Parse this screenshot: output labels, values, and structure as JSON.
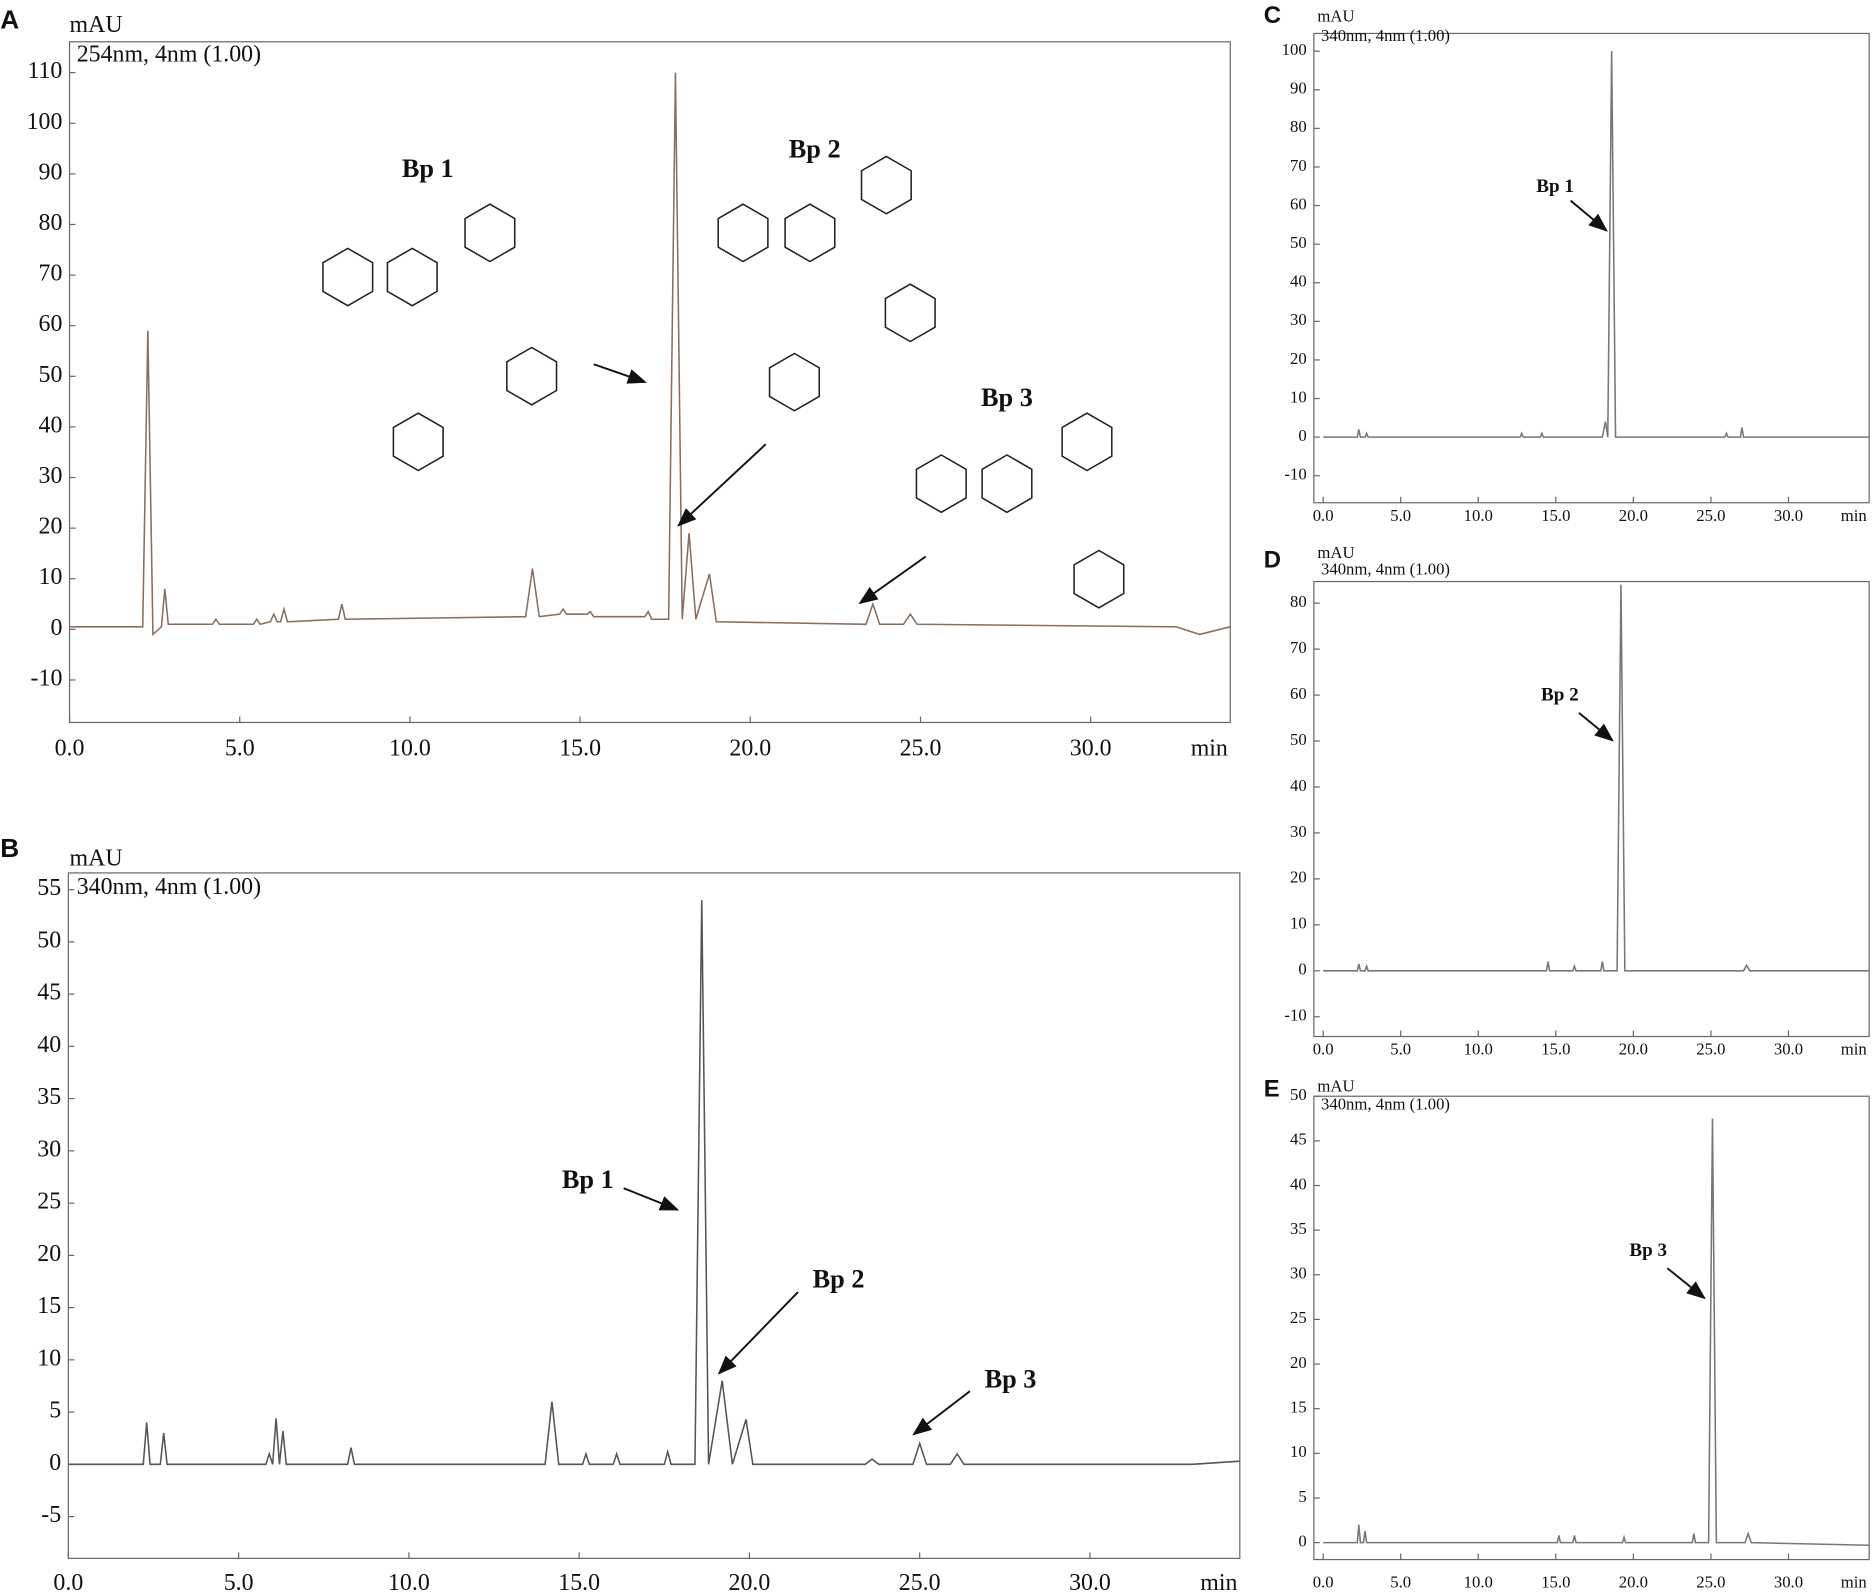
{
  "chart_data": [
    {
      "type": "line",
      "panel": "A",
      "subtitle": "254nm, 4nm (1.00)",
      "y_label": "mAU",
      "x_label": "min",
      "x": [
        0,
        2.15,
        2.3,
        2.45,
        2.7,
        2.8,
        2.9,
        4.2,
        4.3,
        4.4,
        5.4,
        5.5,
        5.6,
        5.9,
        6.0,
        6.1,
        6.2,
        6.3,
        6.4,
        7.9,
        8.0,
        8.1,
        13.4,
        13.6,
        13.8,
        14.4,
        14.5,
        14.6,
        15.2,
        15.3,
        15.4,
        16.9,
        17.0,
        17.1,
        17.6,
        17.8,
        18.0,
        18.2,
        18.4,
        18.8,
        19.0,
        23.4,
        23.6,
        23.8,
        24.5,
        24.7,
        24.9,
        32.5,
        33.2,
        34.1
      ],
      "values": [
        0.5,
        0.5,
        59,
        -1,
        0.5,
        8,
        1,
        1,
        2,
        1,
        1,
        2,
        1,
        1.5,
        3,
        1.5,
        1.5,
        4,
        1.5,
        2,
        5,
        2,
        2.5,
        12,
        2.5,
        3,
        4,
        3,
        3,
        3.5,
        2.5,
        2.5,
        3.5,
        2,
        2,
        110,
        2,
        19,
        2,
        11,
        1.5,
        1,
        5,
        1,
        1,
        3,
        1,
        0.5,
        -1,
        0.5
      ],
      "color": "#8a6e5e",
      "xlim": [
        0,
        34.1
      ],
      "ylim": [
        -18.4,
        116.1
      ],
      "xticks": [
        {
          "value": 0,
          "label": "0.0"
        },
        {
          "value": 5,
          "label": "5.0"
        },
        {
          "value": 10,
          "label": "10.0"
        },
        {
          "value": 15,
          "label": "15.0"
        },
        {
          "value": 20,
          "label": "20.0"
        },
        {
          "value": 25,
          "label": "25.0"
        },
        {
          "value": 30,
          "label": "30.0"
        }
      ],
      "yticks": [
        -10,
        0,
        10,
        20,
        30,
        40,
        50,
        60,
        70,
        80,
        90,
        100,
        110
      ],
      "annotations": [
        {
          "text": "Bp 1"
        },
        {
          "text": "Bp 2"
        },
        {
          "text": "Bp 3"
        }
      ]
    },
    {
      "type": "line",
      "panel": "B",
      "subtitle": "340nm, 4nm (1.00)",
      "y_label": "mAU",
      "x_label": "min",
      "x": [
        0,
        2.2,
        2.3,
        2.4,
        2.7,
        2.8,
        2.9,
        5.8,
        5.9,
        6.0,
        6.1,
        6.2,
        6.3,
        6.4,
        8.2,
        8.3,
        8.4,
        14.0,
        14.2,
        14.4,
        15.1,
        15.2,
        15.3,
        16.0,
        16.1,
        16.2,
        17.5,
        17.6,
        17.7,
        18.4,
        18.6,
        18.8,
        19.2,
        19.5,
        19.9,
        20.1,
        23.4,
        23.6,
        23.8,
        24.8,
        25.0,
        25.2,
        25.9,
        26.1,
        26.3,
        33.0,
        34.4
      ],
      "values": [
        0,
        0,
        4,
        0,
        0,
        3,
        0,
        0,
        1,
        0,
        4.4,
        0,
        3.2,
        0,
        0,
        1.6,
        0,
        0,
        6,
        0,
        0,
        1,
        0,
        0,
        1,
        0,
        0,
        1.2,
        0,
        0,
        54,
        0,
        8,
        0,
        4.3,
        0,
        0,
        0.5,
        0,
        0,
        2,
        0,
        0,
        1,
        0,
        0,
        0.3
      ],
      "color": "#555555",
      "xlim": [
        0,
        34.4
      ],
      "ylim": [
        -9.0,
        56.6
      ],
      "xticks": [
        {
          "value": 0,
          "label": "0.0"
        },
        {
          "value": 5,
          "label": "5.0"
        },
        {
          "value": 10,
          "label": "10.0"
        },
        {
          "value": 15,
          "label": "15.0"
        },
        {
          "value": 20,
          "label": "20.0"
        },
        {
          "value": 25,
          "label": "25.0"
        },
        {
          "value": 30,
          "label": "30.0"
        }
      ],
      "yticks": [
        -5,
        0,
        5,
        10,
        15,
        20,
        25,
        30,
        35,
        40,
        45,
        50,
        55
      ],
      "annotations": [
        {
          "text": "Bp 1"
        },
        {
          "text": "Bp 2"
        },
        {
          "text": "Bp 3"
        }
      ]
    },
    {
      "type": "line",
      "panel": "C",
      "subtitle": "340nm, 4nm (1.00)",
      "y_label": "mAU",
      "x_label": "min",
      "x": [
        0,
        2.2,
        2.3,
        2.4,
        2.7,
        2.8,
        2.9,
        12.7,
        12.8,
        12.9,
        14.0,
        14.1,
        14.2,
        18.0,
        18.2,
        18.35,
        18.6,
        18.85,
        19.5,
        25.9,
        26.0,
        26.1,
        26.9,
        27.0,
        27.1,
        35.2
      ],
      "values": [
        0,
        0,
        2,
        0,
        0,
        1,
        0,
        0,
        1,
        0,
        0,
        1,
        0,
        0,
        4,
        0,
        100,
        0,
        0,
        0,
        1,
        0,
        0,
        2.5,
        0,
        0
      ],
      "color": "#777777",
      "xlim": [
        -0.6,
        35.2
      ],
      "ylim": [
        -17,
        104.6
      ],
      "xticks": [
        {
          "value": 0,
          "label": "0.0"
        },
        {
          "value": 5,
          "label": "5.0"
        },
        {
          "value": 10,
          "label": "10.0"
        },
        {
          "value": 15,
          "label": "15.0"
        },
        {
          "value": 20,
          "label": "20.0"
        },
        {
          "value": 25,
          "label": "25.0"
        },
        {
          "value": 30,
          "label": "30.0"
        }
      ],
      "yticks": [
        -10,
        0,
        10,
        20,
        30,
        40,
        50,
        60,
        70,
        80,
        90,
        100
      ],
      "annotations": [
        {
          "text": "Bp 1"
        }
      ]
    },
    {
      "type": "line",
      "panel": "D",
      "subtitle": "340nm, 4nm (1.00)",
      "y_label": "mAU",
      "x_label": "min",
      "x": [
        0,
        2.2,
        2.3,
        2.4,
        2.7,
        2.8,
        2.9,
        14.4,
        14.5,
        14.6,
        16.1,
        16.2,
        16.3,
        17.9,
        18.0,
        18.1,
        18.95,
        19.2,
        19.45,
        27.1,
        27.3,
        27.5,
        35.2
      ],
      "values": [
        0,
        0,
        1.5,
        0,
        0,
        1,
        0,
        0,
        2,
        0,
        0,
        1,
        0,
        0,
        2,
        0,
        0,
        84,
        0,
        0,
        1.2,
        0,
        0
      ],
      "color": "#777777",
      "xlim": [
        -0.6,
        35.2
      ],
      "ylim": [
        -14.3,
        84.7
      ],
      "xticks": [
        {
          "value": 0,
          "label": "0.0"
        },
        {
          "value": 5,
          "label": "5.0"
        },
        {
          "value": 10,
          "label": "10.0"
        },
        {
          "value": 15,
          "label": "15.0"
        },
        {
          "value": 20,
          "label": "20.0"
        },
        {
          "value": 25,
          "label": "25.0"
        },
        {
          "value": 30,
          "label": "30.0"
        }
      ],
      "yticks": [
        -10,
        0,
        10,
        20,
        30,
        40,
        50,
        60,
        70,
        80
      ],
      "annotations": [
        {
          "text": "Bp 2"
        }
      ]
    },
    {
      "type": "line",
      "panel": "E",
      "subtitle": "340nm, 4nm (1.00)",
      "y_label": "mAU",
      "x_label": "min",
      "x": [
        0,
        2.2,
        2.3,
        2.4,
        2.6,
        2.7,
        2.8,
        15.1,
        15.2,
        15.3,
        16.1,
        16.2,
        16.3,
        19.3,
        19.4,
        19.5,
        23.8,
        23.9,
        24.0,
        24.85,
        25.1,
        25.35,
        27.2,
        27.4,
        27.6,
        35.2
      ],
      "values": [
        0,
        0,
        2,
        0,
        0,
        1.3,
        0,
        0,
        0.8,
        0,
        0,
        0.8,
        0,
        0,
        0.6,
        0,
        0,
        1,
        0,
        0,
        47.5,
        0,
        0,
        1,
        0,
        -0.3
      ],
      "color": "#777777",
      "xlim": [
        -0.6,
        35.2
      ],
      "ylim": [
        -1.9,
        50
      ],
      "xticks": [
        {
          "value": 0,
          "label": "0.0"
        },
        {
          "value": 5,
          "label": "5.0"
        },
        {
          "value": 10,
          "label": "10.0"
        },
        {
          "value": 15,
          "label": "15.0"
        },
        {
          "value": 20,
          "label": "20.0"
        },
        {
          "value": 25,
          "label": "25.0"
        },
        {
          "value": 30,
          "label": "30.0"
        }
      ],
      "yticks": [
        0,
        5,
        10,
        15,
        20,
        25,
        30,
        35,
        40,
        45,
        50
      ],
      "annotations": [
        {
          "text": "Bp 3"
        }
      ]
    }
  ]
}
